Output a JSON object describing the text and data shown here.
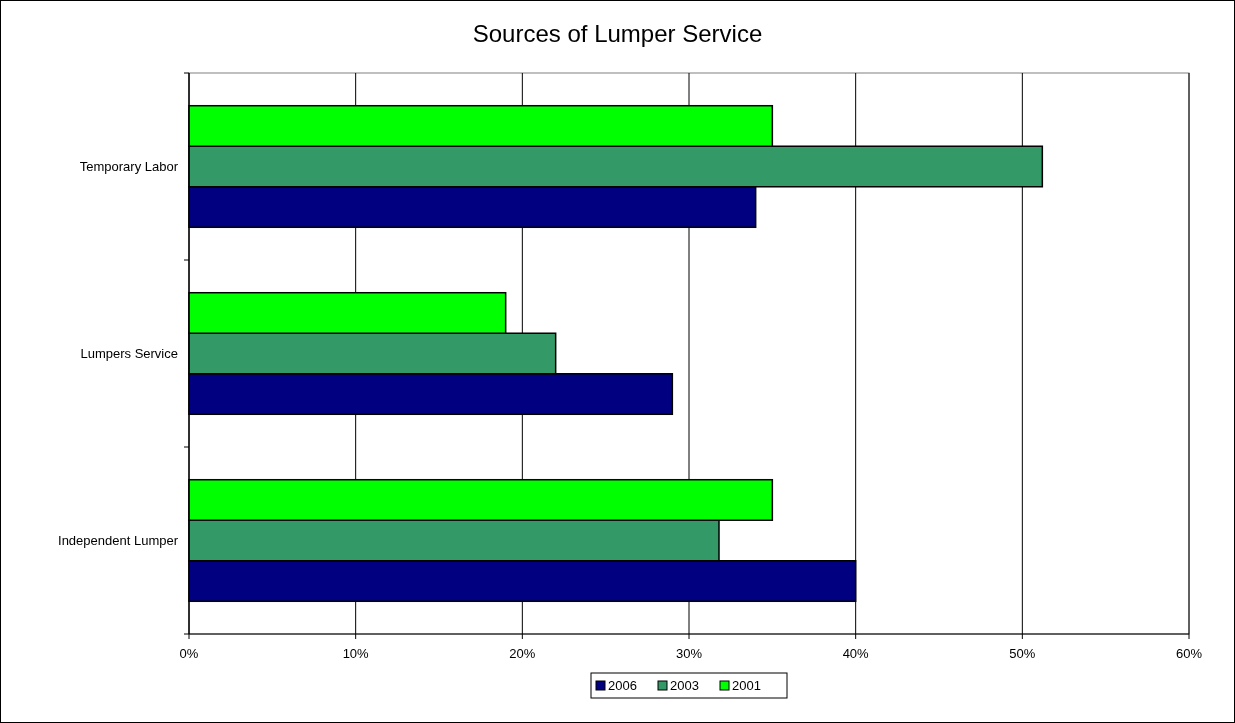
{
  "chart_data": {
    "type": "bar",
    "orientation": "horizontal",
    "title": "Sources of Lumper Service",
    "categories": [
      "Temporary Labor",
      "Lumpers Service",
      "Independent Lumper"
    ],
    "series": [
      {
        "name": "2006",
        "color": "#000080",
        "values": [
          34,
          29,
          40
        ]
      },
      {
        "name": "2003",
        "color": "#339966",
        "values": [
          51.2,
          22,
          31.8
        ]
      },
      {
        "name": "2001",
        "color": "#00ff00",
        "values": [
          35,
          19,
          35
        ]
      }
    ],
    "xlim": [
      0,
      60
    ],
    "xticks": [
      {
        "value": 0,
        "label": "0%"
      },
      {
        "value": 10,
        "label": "10%"
      },
      {
        "value": 20,
        "label": "20%"
      },
      {
        "value": 30,
        "label": "30%"
      },
      {
        "value": 40,
        "label": "40%"
      },
      {
        "value": 50,
        "label": "50%"
      },
      {
        "value": 60,
        "label": "60%"
      }
    ],
    "grid": "x",
    "legend": "bottom"
  }
}
